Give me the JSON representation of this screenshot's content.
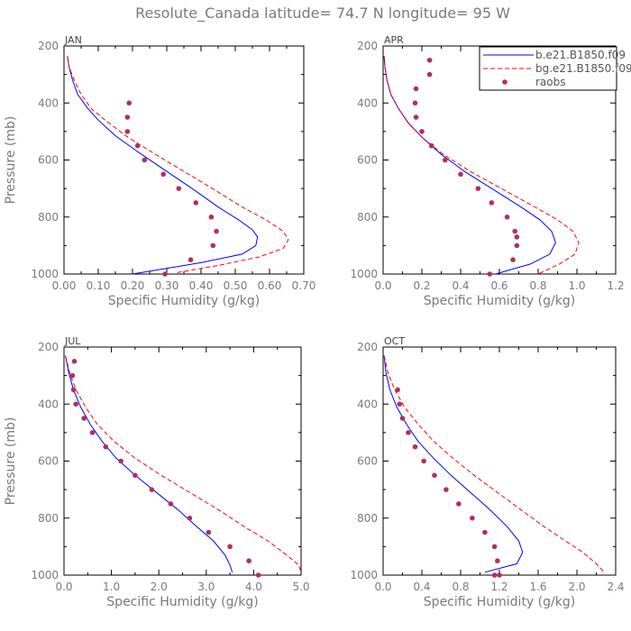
{
  "title": "Resolute_Canada  latitude= 74.7 N longitude= 95 W",
  "colors": {
    "series1": "#0000ff",
    "series2": "#ff0000",
    "raobs": "#b03060",
    "axes": "#000000",
    "text": "#7a7a7a"
  },
  "legend": {
    "placement": "top-right of APR panel",
    "entries": [
      {
        "label": "b.e21.B1850.f09",
        "style": "solid",
        "color": "#0000ff"
      },
      {
        "label": "bg.e21.B1850.f09",
        "style": "dashed",
        "color": "#ff0000"
      },
      {
        "label": "raobs",
        "style": "dots",
        "color": "#b03060"
      }
    ]
  },
  "chart_data": [
    {
      "type": "line",
      "panel": "JAN",
      "xlabel": "Specific Humidity (g/kg)",
      "ylabel": "Pressure (mb)",
      "xlim": [
        0,
        0.7
      ],
      "ylim": [
        1000,
        200
      ],
      "y_inverted": true,
      "xticks": [
        "0.00",
        "0.10",
        "0.20",
        "0.30",
        "0.40",
        "0.50",
        "0.60",
        "0.70"
      ],
      "yticks": [
        "200",
        "400",
        "600",
        "800",
        "1000"
      ],
      "grid": false,
      "series": [
        {
          "name": "b.e21.B1850.f09",
          "x": [
            0.01,
            0.015,
            0.025,
            0.04,
            0.07,
            0.1,
            0.15,
            0.22,
            0.3,
            0.38,
            0.45,
            0.51,
            0.55,
            0.565,
            0.56,
            0.52,
            0.4,
            0.2
          ],
          "y": [
            235,
            275,
            320,
            370,
            420,
            460,
            515,
            575,
            640,
            705,
            765,
            810,
            845,
            870,
            900,
            930,
            960,
            1000
          ]
        },
        {
          "name": "bg.e21.B1850.f09",
          "x": [
            0.01,
            0.015,
            0.03,
            0.05,
            0.08,
            0.12,
            0.18,
            0.26,
            0.35,
            0.44,
            0.52,
            0.59,
            0.64,
            0.655,
            0.64,
            0.57,
            0.45,
            0.33
          ],
          "y": [
            235,
            275,
            320,
            370,
            420,
            460,
            515,
            575,
            640,
            705,
            765,
            810,
            850,
            880,
            910,
            940,
            970,
            995
          ]
        },
        {
          "name": "raobs",
          "x": [
            0.19,
            0.185,
            0.185,
            0.215,
            0.235,
            0.29,
            0.335,
            0.385,
            0.43,
            0.445,
            0.435,
            0.37,
            0.295
          ],
          "y": [
            400,
            450,
            500,
            550,
            600,
            650,
            700,
            750,
            800,
            850,
            900,
            950,
            1000
          ]
        }
      ]
    },
    {
      "type": "line",
      "panel": "APR",
      "xlabel": "Specific Humidity (g/kg)",
      "ylabel": "",
      "xlim": [
        0,
        1.2
      ],
      "ylim": [
        1000,
        200
      ],
      "y_inverted": true,
      "xticks": [
        "0.0",
        "0.2",
        "0.4",
        "0.6",
        "0.8",
        "1.0",
        "1.2"
      ],
      "yticks": [
        "200",
        "400",
        "600",
        "800",
        "1000"
      ],
      "grid": false,
      "series": [
        {
          "name": "b.e21.B1850.f09",
          "x": [
            0.005,
            0.01,
            0.02,
            0.04,
            0.08,
            0.13,
            0.2,
            0.3,
            0.42,
            0.56,
            0.7,
            0.81,
            0.87,
            0.89,
            0.86,
            0.76,
            0.58
          ],
          "y": [
            235,
            275,
            320,
            370,
            420,
            470,
            520,
            580,
            640,
            700,
            760,
            810,
            850,
            890,
            930,
            965,
            1000
          ]
        },
        {
          "name": "bg.e21.B1850.f09",
          "x": [
            0.005,
            0.01,
            0.02,
            0.04,
            0.08,
            0.13,
            0.2,
            0.31,
            0.45,
            0.61,
            0.77,
            0.9,
            0.98,
            1.01,
            0.99,
            0.91,
            0.8
          ],
          "y": [
            235,
            275,
            320,
            370,
            420,
            470,
            520,
            580,
            640,
            700,
            760,
            810,
            850,
            890,
            930,
            965,
            1000
          ]
        },
        {
          "name": "raobs",
          "x": [
            0.24,
            0.24,
            0.17,
            0.165,
            0.17,
            0.2,
            0.25,
            0.32,
            0.4,
            0.49,
            0.56,
            0.64,
            0.68,
            0.69,
            0.69,
            0.67,
            0.55
          ],
          "y": [
            250,
            300,
            350,
            400,
            450,
            500,
            550,
            600,
            650,
            700,
            750,
            800,
            850,
            870,
            900,
            950,
            1000
          ]
        }
      ]
    },
    {
      "type": "line",
      "panel": "JUL",
      "xlabel": "Specific Humidity (g/kg)",
      "ylabel": "Pressure (mb)",
      "xlim": [
        0,
        5.0
      ],
      "ylim": [
        1000,
        200
      ],
      "y_inverted": true,
      "xticks": [
        "0.0",
        "1.0",
        "2.0",
        "3.0",
        "4.0",
        "5.0"
      ],
      "yticks": [
        "200",
        "400",
        "600",
        "800",
        "1000"
      ],
      "grid": false,
      "series": [
        {
          "name": "b.e21.B1850.f09",
          "x": [
            0.03,
            0.1,
            0.2,
            0.35,
            0.55,
            0.8,
            1.1,
            1.5,
            1.95,
            2.4,
            2.8,
            3.15,
            3.4,
            3.5,
            3.55
          ],
          "y": [
            230,
            290,
            350,
            410,
            470,
            530,
            590,
            650,
            710,
            770,
            830,
            880,
            930,
            965,
            990
          ]
        },
        {
          "name": "bg.e21.B1850.f09",
          "x": [
            0.03,
            0.12,
            0.25,
            0.45,
            0.7,
            1.05,
            1.5,
            2.05,
            2.65,
            3.25,
            3.8,
            4.3,
            4.7,
            4.95,
            5.0
          ],
          "y": [
            230,
            290,
            350,
            410,
            470,
            530,
            590,
            650,
            710,
            770,
            830,
            880,
            930,
            965,
            990
          ]
        },
        {
          "name": "raobs",
          "x": [
            0.22,
            0.18,
            0.2,
            0.25,
            0.42,
            0.6,
            0.88,
            1.2,
            1.5,
            1.85,
            2.25,
            2.65,
            3.05,
            3.5,
            3.9,
            4.1
          ],
          "y": [
            250,
            300,
            350,
            400,
            450,
            500,
            550,
            600,
            650,
            700,
            750,
            800,
            850,
            900,
            950,
            1000
          ]
        }
      ]
    },
    {
      "type": "line",
      "panel": "OCT",
      "xlabel": "Specific Humidity (g/kg)",
      "ylabel": "",
      "xlim": [
        0,
        2.4
      ],
      "ylim": [
        1000,
        200
      ],
      "y_inverted": true,
      "xticks": [
        "0.0",
        "0.4",
        "0.8",
        "1.2",
        "1.6",
        "2.0",
        "2.4"
      ],
      "yticks": [
        "200",
        "400",
        "600",
        "800",
        "1000"
      ],
      "grid": false,
      "series": [
        {
          "name": "b.e21.B1850.f09",
          "x": [
            0.01,
            0.03,
            0.07,
            0.14,
            0.24,
            0.36,
            0.52,
            0.7,
            0.9,
            1.1,
            1.28,
            1.4,
            1.44,
            1.38,
            1.05
          ],
          "y": [
            230,
            290,
            350,
            410,
            470,
            530,
            590,
            650,
            710,
            770,
            830,
            880,
            920,
            960,
            990
          ]
        },
        {
          "name": "bg.e21.B1850.f09",
          "x": [
            0.01,
            0.05,
            0.12,
            0.22,
            0.36,
            0.52,
            0.72,
            0.94,
            1.18,
            1.42,
            1.66,
            1.88,
            2.06,
            2.2,
            2.28
          ],
          "y": [
            230,
            290,
            350,
            410,
            470,
            530,
            590,
            650,
            710,
            770,
            830,
            880,
            920,
            960,
            990
          ]
        },
        {
          "name": "raobs",
          "x": [
            0.15,
            0.17,
            0.2,
            0.26,
            0.33,
            0.42,
            0.53,
            0.65,
            0.78,
            0.92,
            1.05,
            1.15,
            1.18,
            1.2,
            1.15
          ],
          "y": [
            350,
            400,
            450,
            500,
            550,
            600,
            650,
            700,
            750,
            800,
            850,
            900,
            950,
            1000,
            1000
          ]
        }
      ]
    }
  ]
}
